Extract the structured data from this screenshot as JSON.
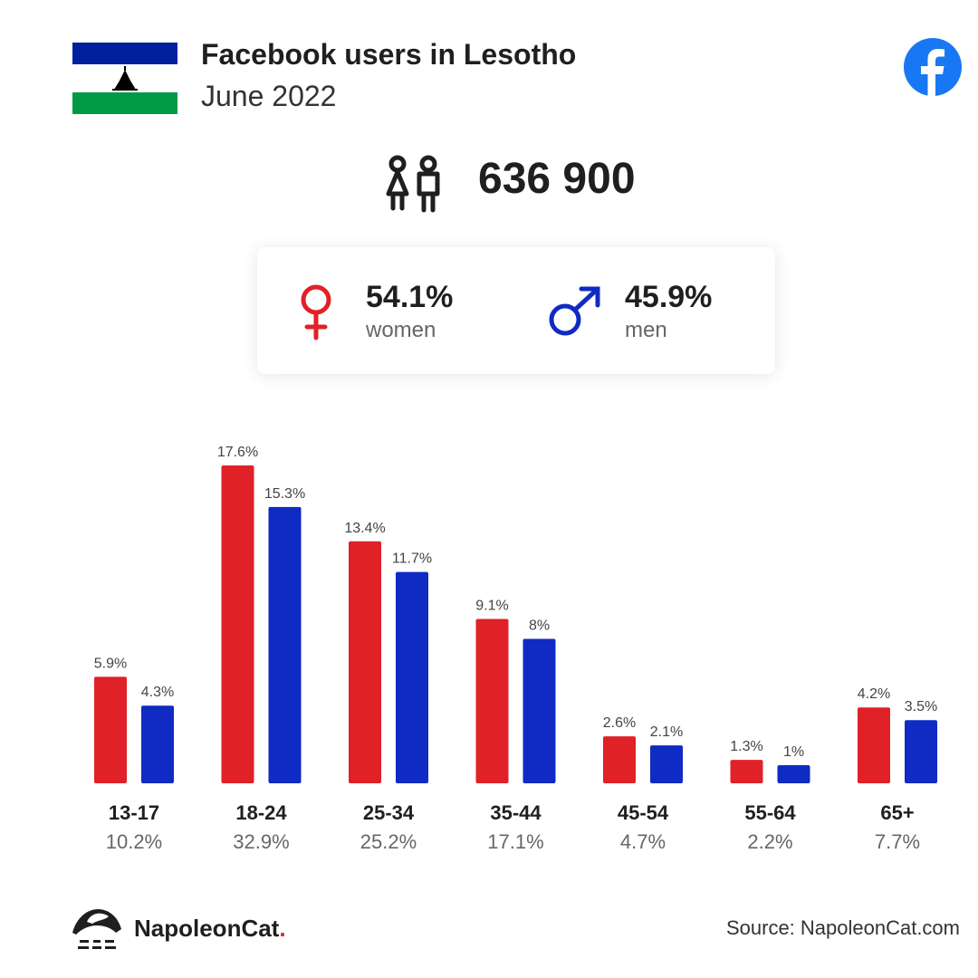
{
  "header": {
    "title": "Facebook users in Lesotho",
    "subtitle": "June 2022",
    "flag_icon": "lesotho-flag-icon",
    "platform_icon": "facebook-logo-icon"
  },
  "summary": {
    "users_icon": "people-icon",
    "total_users": "636 900"
  },
  "gender": {
    "women": {
      "pct": "54.1%",
      "label": "women",
      "icon": "female-symbol-icon",
      "color": "#e02128"
    },
    "men": {
      "pct": "45.9%",
      "label": "men",
      "icon": "male-symbol-icon",
      "color": "#0f2bc3"
    }
  },
  "chart_data": {
    "type": "bar",
    "categories": [
      "13-17",
      "18-24",
      "25-34",
      "35-44",
      "45-54",
      "55-64",
      "65+"
    ],
    "category_totals": [
      "10.2%",
      "32.9%",
      "25.2%",
      "17.1%",
      "4.7%",
      "2.2%",
      "7.7%"
    ],
    "series": [
      {
        "name": "women",
        "color": "#e02128",
        "values": [
          5.9,
          17.6,
          13.4,
          9.1,
          2.6,
          1.3,
          4.2
        ],
        "labels": [
          "5.9%",
          "17.6%",
          "13.4%",
          "9.1%",
          "2.6%",
          "1.3%",
          "4.2%"
        ]
      },
      {
        "name": "men",
        "color": "#0f2bc3",
        "values": [
          4.3,
          15.3,
          11.7,
          8.0,
          2.1,
          1.0,
          3.5
        ],
        "labels": [
          "4.3%",
          "15.3%",
          "11.7%",
          "8%",
          "2.1%",
          "1%",
          "3.5%"
        ]
      }
    ],
    "ylim": [
      0,
      17.6
    ],
    "grid": false,
    "legend": "none"
  },
  "footer": {
    "brand_icon": "napoleoncat-logo-icon",
    "brand_name": "NapoleonCat",
    "brand_dot": ".",
    "source": "Source: NapoleonCat.com"
  },
  "colors": {
    "red": "#e02128",
    "blue": "#0f2bc3",
    "facebook_blue": "#1877f2"
  }
}
